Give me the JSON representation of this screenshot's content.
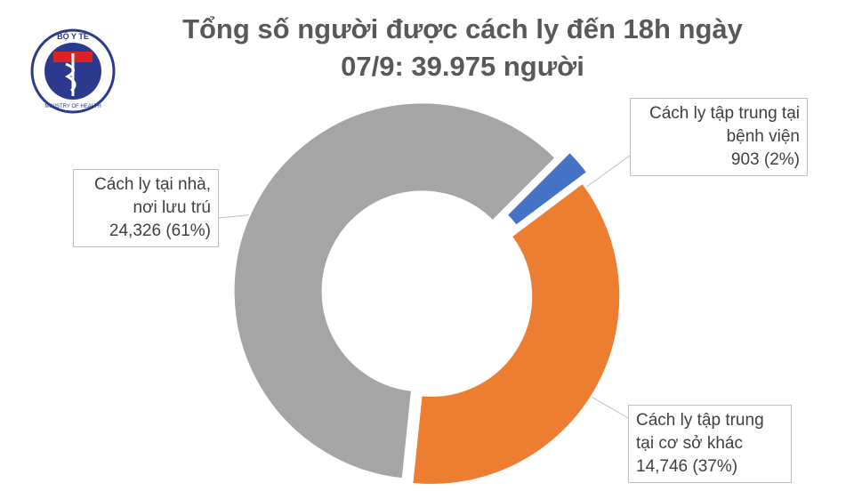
{
  "logo": {
    "top": "BỘ Y TẾ",
    "bottom": "MINISTRY OF HEALTH"
  },
  "chart_data": {
    "type": "donut",
    "title": "Tổng số người được cách ly đến 18h ngày 07/9: 39.975 người",
    "categories": [
      "Cách ly tập trung tại bệnh viện",
      "Cách ly tập trung tại cơ sở khác",
      "Cách ly tại nhà, nơi lưu trú"
    ],
    "values": [
      903,
      14746,
      24326
    ],
    "value_labels": [
      "903 (2%)",
      "14,746 (37%)",
      "24,326 (61%)"
    ],
    "colors": [
      "#4472c4",
      "#ed7d31",
      "#a5a5a5"
    ]
  }
}
